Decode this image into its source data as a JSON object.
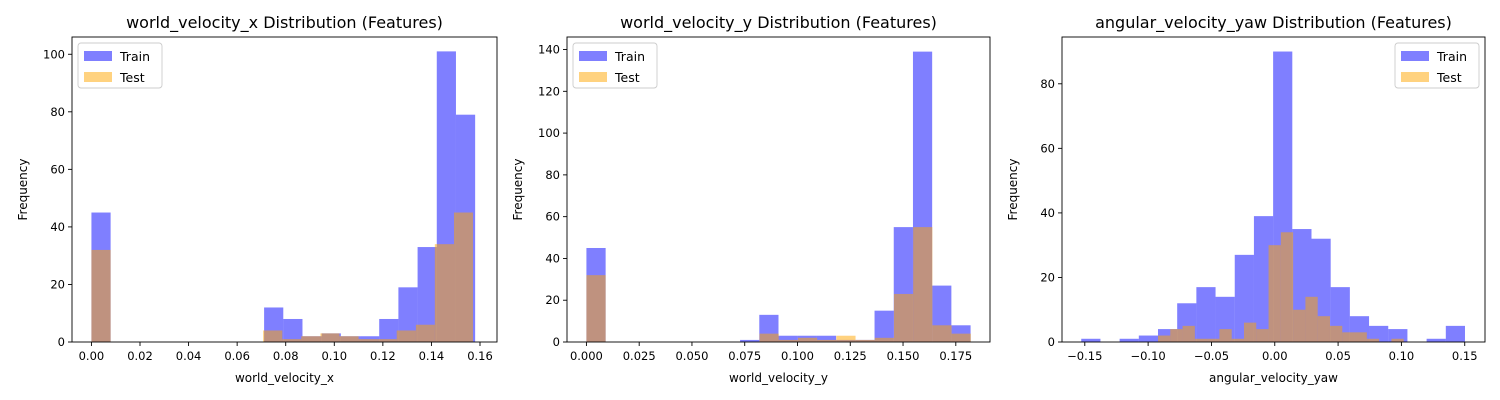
{
  "colors": {
    "train": "#0000ff",
    "test": "#ffa500",
    "train_alpha": 0.5,
    "test_alpha": 0.5
  },
  "chart_data": [
    {
      "type": "histogram",
      "title": "world_velocity_x Distribution (Features)",
      "xlabel": "world_velocity_x",
      "ylabel": "Frequency",
      "xlim": [
        -0.008,
        0.167
      ],
      "ylim": [
        0,
        106
      ],
      "xticks": [
        0.0,
        0.02,
        0.04,
        0.06,
        0.08,
        0.1,
        0.12,
        0.14,
        0.16
      ],
      "xtick_labels": [
        "0.00",
        "0.02",
        "0.04",
        "0.06",
        "0.08",
        "0.10",
        "0.12",
        "0.14",
        "0.16"
      ],
      "yticks": [
        0,
        20,
        40,
        60,
        80,
        100
      ],
      "ytick_labels": [
        "0",
        "20",
        "40",
        "60",
        "80",
        "100"
      ],
      "legend": "upper left",
      "series": [
        {
          "name": "Train",
          "bin_start": 0.0,
          "bin_width": 0.0079,
          "counts": [
            45,
            0,
            0,
            0,
            0,
            0,
            0,
            0,
            0,
            12,
            8,
            2,
            3,
            2,
            2,
            8,
            19,
            33,
            101,
            79
          ]
        },
        {
          "name": "Test",
          "bin_start": 0.0,
          "bin_width": 0.0079,
          "first_bin_width": 0.0079,
          "bins": [
            {
              "x0": 0.0,
              "x1": 0.0079,
              "count": 32
            },
            {
              "x0": 0.0707,
              "x1": 0.0786,
              "count": 4
            },
            {
              "x0": 0.0786,
              "x1": 0.0864,
              "count": 1
            },
            {
              "x0": 0.0864,
              "x1": 0.0943,
              "count": 2
            },
            {
              "x0": 0.0943,
              "x1": 0.1021,
              "count": 3
            },
            {
              "x0": 0.1021,
              "x1": 0.11,
              "count": 2
            },
            {
              "x0": 0.11,
              "x1": 0.1179,
              "count": 1
            },
            {
              "x0": 0.1179,
              "x1": 0.1257,
              "count": 1
            },
            {
              "x0": 0.1257,
              "x1": 0.1336,
              "count": 4
            },
            {
              "x0": 0.1336,
              "x1": 0.1414,
              "count": 6
            },
            {
              "x0": 0.1414,
              "x1": 0.1493,
              "count": 34
            },
            {
              "x0": 0.1493,
              "x1": 0.1571,
              "count": 45
            }
          ]
        }
      ]
    },
    {
      "type": "histogram",
      "title": "world_velocity_y Distribution (Features)",
      "xlabel": "world_velocity_y",
      "ylabel": "Frequency",
      "xlim": [
        -0.0092,
        0.1912
      ],
      "ylim": [
        0,
        146
      ],
      "xticks": [
        0.0,
        0.025,
        0.05,
        0.075,
        0.1,
        0.125,
        0.15,
        0.175
      ],
      "xtick_labels": [
        "0.000",
        "0.025",
        "0.050",
        "0.075",
        "0.100",
        "0.125",
        "0.150",
        "0.175"
      ],
      "yticks": [
        0,
        20,
        40,
        60,
        80,
        100,
        120,
        140
      ],
      "ytick_labels": [
        "0",
        "20",
        "40",
        "60",
        "80",
        "100",
        "120",
        "140"
      ],
      "legend": "upper left",
      "series": [
        {
          "name": "Train",
          "bin_start": 0.0,
          "bin_width": 0.0091,
          "counts": [
            45,
            0,
            0,
            0,
            0,
            0,
            0,
            0,
            1,
            13,
            3,
            3,
            3,
            1,
            1,
            15,
            55,
            139,
            27,
            8
          ]
        },
        {
          "name": "Test",
          "bins": [
            {
              "x0": 0.0,
              "x1": 0.0091,
              "count": 32
            },
            {
              "x0": 0.082,
              "x1": 0.0911,
              "count": 4
            },
            {
              "x0": 0.0911,
              "x1": 0.1002,
              "count": 1
            },
            {
              "x0": 0.1002,
              "x1": 0.1093,
              "count": 2
            },
            {
              "x0": 0.1093,
              "x1": 0.1184,
              "count": 1
            },
            {
              "x0": 0.1184,
              "x1": 0.1275,
              "count": 3
            },
            {
              "x0": 0.1275,
              "x1": 0.1366,
              "count": 1
            },
            {
              "x0": 0.1366,
              "x1": 0.1457,
              "count": 2
            },
            {
              "x0": 0.1457,
              "x1": 0.1548,
              "count": 23
            },
            {
              "x0": 0.1548,
              "x1": 0.1639,
              "count": 55
            },
            {
              "x0": 0.1639,
              "x1": 0.173,
              "count": 8
            },
            {
              "x0": 0.173,
              "x1": 0.1821,
              "count": 4
            }
          ]
        }
      ]
    },
    {
      "type": "histogram",
      "title": "angular_velocity_yaw Distribution (Features)",
      "xlabel": "angular_velocity_yaw",
      "ylabel": "Frequency",
      "xlim": [
        -0.168,
        0.166
      ],
      "ylim": [
        0,
        94.5
      ],
      "xticks": [
        -0.15,
        -0.1,
        -0.05,
        0.0,
        0.05,
        0.1,
        0.15
      ],
      "xtick_labels": [
        "−0.15",
        "−0.10",
        "−0.05",
        "0.00",
        "0.05",
        "0.10",
        "0.15"
      ],
      "yticks": [
        0,
        20,
        40,
        60,
        80
      ],
      "ytick_labels": [
        "0",
        "20",
        "40",
        "60",
        "80"
      ],
      "legend": "upper right",
      "series": [
        {
          "name": "Train",
          "bin_start": -0.1528,
          "bin_width": 0.01515,
          "counts": [
            1,
            0,
            1,
            2,
            4,
            12,
            17,
            14,
            27,
            39,
            90,
            35,
            32,
            17,
            8,
            5,
            4,
            0,
            1,
            5
          ]
        },
        {
          "name": "Test",
          "bins": [
            {
              "x0": -0.0922,
              "x1": -0.0825,
              "count": 2
            },
            {
              "x0": -0.0825,
              "x1": -0.0728,
              "count": 4
            },
            {
              "x0": -0.0728,
              "x1": -0.0631,
              "count": 5
            },
            {
              "x0": -0.0631,
              "x1": -0.0534,
              "count": 1
            },
            {
              "x0": -0.0534,
              "x1": -0.0437,
              "count": 1
            },
            {
              "x0": -0.0437,
              "x1": -0.034,
              "count": 4
            },
            {
              "x0": -0.034,
              "x1": -0.0243,
              "count": 1
            },
            {
              "x0": -0.0243,
              "x1": -0.0146,
              "count": 6
            },
            {
              "x0": -0.0146,
              "x1": -0.0049,
              "count": 4
            },
            {
              "x0": -0.0049,
              "x1": 0.0048,
              "count": 30
            },
            {
              "x0": 0.0048,
              "x1": 0.0145,
              "count": 34
            },
            {
              "x0": 0.0145,
              "x1": 0.0242,
              "count": 10
            },
            {
              "x0": 0.0242,
              "x1": 0.0339,
              "count": 14
            },
            {
              "x0": 0.0339,
              "x1": 0.0436,
              "count": 8
            },
            {
              "x0": 0.0436,
              "x1": 0.0533,
              "count": 5
            },
            {
              "x0": 0.0533,
              "x1": 0.063,
              "count": 3
            },
            {
              "x0": 0.063,
              "x1": 0.0727,
              "count": 3
            },
            {
              "x0": 0.0727,
              "x1": 0.0824,
              "count": 1
            },
            {
              "x0": 0.0824,
              "x1": 0.0921,
              "count": 0
            },
            {
              "x0": 0.0921,
              "x1": 0.1018,
              "count": 1
            }
          ]
        }
      ]
    }
  ]
}
